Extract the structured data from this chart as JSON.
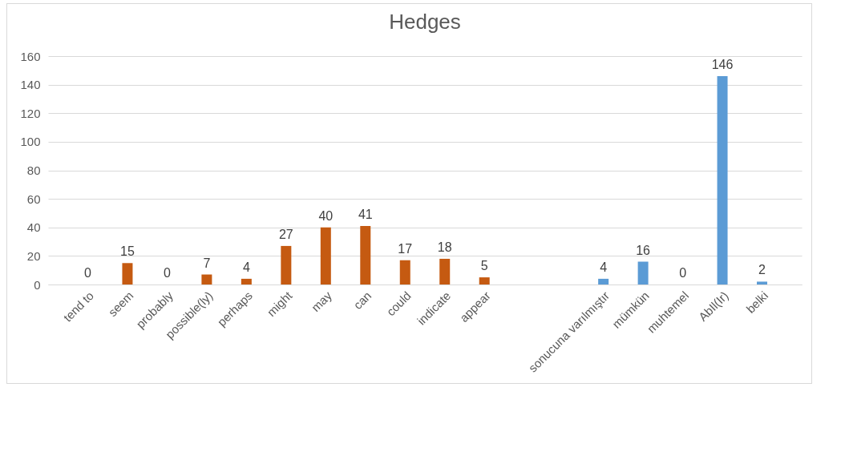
{
  "chart_data": {
    "type": "bar",
    "title": "Hedges",
    "categories": [
      "tend to",
      "seem",
      "probably",
      "possible(ly)",
      "perhaps",
      "might",
      "may",
      "can",
      "could",
      "indicate",
      "appear",
      null,
      null,
      "sonucuna varılmıştır",
      "mümkün",
      "muhtemel",
      "AbIl(Ir)",
      "belki"
    ],
    "values": [
      0,
      15,
      0,
      7,
      4,
      27,
      40,
      41,
      17,
      18,
      5,
      null,
      null,
      4,
      16,
      0,
      146,
      2
    ],
    "colors": [
      "#c55a11",
      "#c55a11",
      "#c55a11",
      "#c55a11",
      "#c55a11",
      "#c55a11",
      "#c55a11",
      "#c55a11",
      "#c55a11",
      "#c55a11",
      "#c55a11",
      null,
      null,
      "#5b9bd5",
      "#5b9bd5",
      "#5b9bd5",
      "#5b9bd5",
      "#5b9bd5"
    ],
    "ylim": [
      0,
      160
    ],
    "yticks": [
      0,
      20,
      40,
      60,
      80,
      100,
      120,
      140,
      160
    ],
    "grid": "y",
    "data_labels": true
  }
}
